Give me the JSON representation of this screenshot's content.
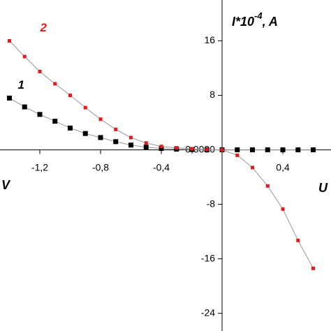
{
  "chart_data": {
    "type": "line",
    "y_label": {
      "text": "I*10",
      "superscript": "-4",
      "unit": ", A"
    },
    "x_label": "U",
    "x_unit": "V",
    "x": [
      -1.4,
      -1.3,
      -1.2,
      -1.1,
      -1.0,
      -0.9,
      -0.8,
      -0.7,
      -0.6,
      -0.5,
      -0.4,
      -0.3,
      -0.2,
      -0.1,
      0,
      0.1,
      0.2,
      0.3,
      0.4,
      0.5,
      0.6
    ],
    "series": [
      {
        "name": "1",
        "color": "#000000",
        "values": [
          7.6,
          6.3,
          5.2,
          4.2,
          3.2,
          2.4,
          1.8,
          1.2,
          0.7,
          0.4,
          0.2,
          0.1,
          0.05,
          0,
          0,
          0,
          0,
          0,
          0,
          0,
          0
        ]
      },
      {
        "name": "2",
        "color": "#e31a1c",
        "values": [
          16.0,
          13.7,
          11.5,
          9.7,
          8.0,
          6.2,
          4.5,
          3.0,
          1.8,
          1.0,
          0.5,
          0.3,
          0.15,
          0.05,
          0,
          -0.8,
          -2.6,
          -5.3,
          -8.7,
          -13.3,
          -17.4
        ]
      }
    ],
    "xlim": [
      -1.462,
      0.717
    ],
    "ylim": [
      -26.6,
      22
    ],
    "xticks": [
      {
        "value": -1.2,
        "label": "-1,2"
      },
      {
        "value": -0.8,
        "label": "-0,8"
      },
      {
        "value": -0.4,
        "label": "-0,4"
      },
      {
        "value": 0.4,
        "label": "0,4"
      }
    ],
    "yticks": [
      16,
      8,
      {
        "value": 0,
        "label": "0,0000"
      },
      -8,
      -16,
      -24
    ]
  }
}
